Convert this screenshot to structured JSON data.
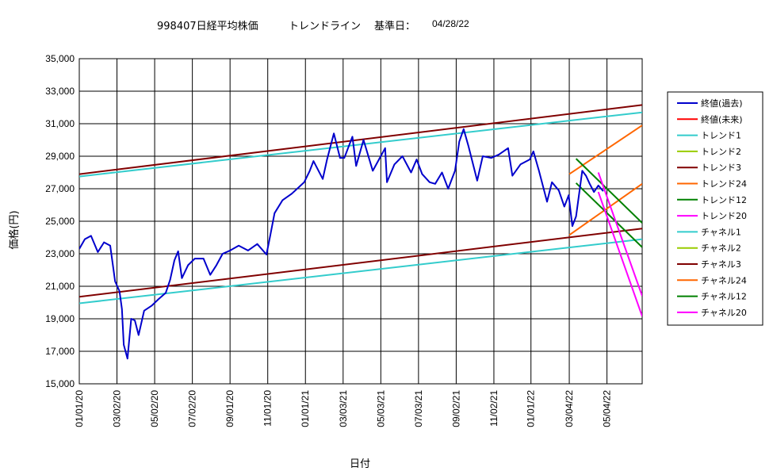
{
  "title": {
    "code_name": "998407日経平均株価",
    "trend_label": "トレンドライン",
    "base_label": "基準日：",
    "base_date": "04/28/22"
  },
  "chart_data": {
    "type": "line",
    "xlabel": "日付",
    "ylabel": "価格(円)",
    "ylim": [
      15000,
      35000
    ],
    "yticks": [
      "15,000",
      "17,000",
      "19,000",
      "21,000",
      "23,000",
      "25,000",
      "27,000",
      "29,000",
      "31,000",
      "33,000",
      "35,000"
    ],
    "xlim": [
      "2020-01-01",
      "2022-06-30"
    ],
    "xticks": [
      "01/01/20",
      "03/02/20",
      "05/02/20",
      "07/02/20",
      "09/01/20",
      "11/01/20",
      "01/01/21",
      "03/03/21",
      "05/03/21",
      "07/03/21",
      "09/02/21",
      "11/02/21",
      "01/01/22",
      "03/04/22",
      "05/04/22"
    ],
    "grid": true,
    "legend_position": "right",
    "series": [
      {
        "name": "終値(過去)",
        "color": "#0000cc",
        "points": [
          [
            "2020-01-01",
            23300
          ],
          [
            "2020-01-10",
            23900
          ],
          [
            "2020-01-20",
            24100
          ],
          [
            "2020-01-31",
            23100
          ],
          [
            "2020-02-10",
            23700
          ],
          [
            "2020-02-20",
            23500
          ],
          [
            "2020-02-28",
            21300
          ],
          [
            "2020-03-06",
            20700
          ],
          [
            "2020-03-10",
            19600
          ],
          [
            "2020-03-13",
            17400
          ],
          [
            "2020-03-19",
            16550
          ],
          [
            "2020-03-25",
            19000
          ],
          [
            "2020-03-31",
            18900
          ],
          [
            "2020-04-06",
            18000
          ],
          [
            "2020-04-15",
            19500
          ],
          [
            "2020-04-27",
            19800
          ],
          [
            "2020-05-08",
            20200
          ],
          [
            "2020-05-20",
            20600
          ],
          [
            "2020-05-27",
            21400
          ],
          [
            "2020-06-03",
            22600
          ],
          [
            "2020-06-09",
            23150
          ],
          [
            "2020-06-15",
            21500
          ],
          [
            "2020-06-25",
            22300
          ],
          [
            "2020-07-06",
            22700
          ],
          [
            "2020-07-20",
            22700
          ],
          [
            "2020-07-31",
            21700
          ],
          [
            "2020-08-10",
            22300
          ],
          [
            "2020-08-20",
            23000
          ],
          [
            "2020-09-01",
            23200
          ],
          [
            "2020-09-15",
            23500
          ],
          [
            "2020-09-30",
            23200
          ],
          [
            "2020-10-15",
            23600
          ],
          [
            "2020-10-30",
            22950
          ],
          [
            "2020-11-05",
            24100
          ],
          [
            "2020-11-12",
            25500
          ],
          [
            "2020-11-25",
            26300
          ],
          [
            "2020-12-10",
            26700
          ],
          [
            "2020-12-30",
            27400
          ],
          [
            "2021-01-08",
            28100
          ],
          [
            "2021-01-14",
            28700
          ],
          [
            "2021-01-29",
            27600
          ],
          [
            "2021-02-05",
            28800
          ],
          [
            "2021-02-16",
            30400
          ],
          [
            "2021-02-26",
            28900
          ],
          [
            "2021-03-05",
            28900
          ],
          [
            "2021-03-18",
            30200
          ],
          [
            "2021-03-24",
            28400
          ],
          [
            "2021-04-05",
            30000
          ],
          [
            "2021-04-20",
            28100
          ],
          [
            "2021-04-30",
            28800
          ],
          [
            "2021-05-10",
            29500
          ],
          [
            "2021-05-13",
            27400
          ],
          [
            "2021-05-25",
            28500
          ],
          [
            "2021-06-07",
            29000
          ],
          [
            "2021-06-21",
            28000
          ],
          [
            "2021-06-30",
            28800
          ],
          [
            "2021-07-09",
            27900
          ],
          [
            "2021-07-21",
            27400
          ],
          [
            "2021-07-30",
            27300
          ],
          [
            "2021-08-10",
            28000
          ],
          [
            "2021-08-20",
            27000
          ],
          [
            "2021-08-31",
            28100
          ],
          [
            "2021-09-07",
            29900
          ],
          [
            "2021-09-14",
            30670
          ],
          [
            "2021-09-22",
            29600
          ],
          [
            "2021-10-06",
            27500
          ],
          [
            "2021-10-15",
            29000
          ],
          [
            "2021-10-29",
            28900
          ],
          [
            "2021-11-10",
            29100
          ],
          [
            "2021-11-25",
            29500
          ],
          [
            "2021-12-02",
            27800
          ],
          [
            "2021-12-15",
            28500
          ],
          [
            "2021-12-30",
            28800
          ],
          [
            "2022-01-05",
            29300
          ],
          [
            "2022-01-14",
            28100
          ],
          [
            "2022-01-27",
            26200
          ],
          [
            "2022-02-04",
            27400
          ],
          [
            "2022-02-15",
            26900
          ],
          [
            "2022-02-24",
            25900
          ],
          [
            "2022-03-03",
            26600
          ],
          [
            "2022-03-09",
            24700
          ],
          [
            "2022-03-15",
            25300
          ],
          [
            "2022-03-25",
            28100
          ],
          [
            "2022-03-31",
            27800
          ],
          [
            "2022-04-06",
            27300
          ],
          [
            "2022-04-13",
            26800
          ],
          [
            "2022-04-20",
            27200
          ],
          [
            "2022-04-28",
            26850
          ]
        ]
      },
      {
        "name": "終値(未来)",
        "color": "#ff0000",
        "points": []
      },
      {
        "name": "トレンド1",
        "color": "#33cccc",
        "points": [
          [
            "2020-01-01",
            27750
          ],
          [
            "2022-06-30",
            31700
          ]
        ]
      },
      {
        "name": "トレンド2",
        "color": "#99cc00",
        "points": []
      },
      {
        "name": "トレンド3",
        "color": "#800000",
        "points": [
          [
            "2020-01-01",
            27900
          ],
          [
            "2022-06-30",
            32150
          ]
        ]
      },
      {
        "name": "トレンド24",
        "color": "#ff6600",
        "points": [
          [
            "2022-03-04",
            27900
          ],
          [
            "2022-06-30",
            30900
          ]
        ]
      },
      {
        "name": "トレンド12",
        "color": "#008000",
        "points": [
          [
            "2022-03-15",
            28850
          ],
          [
            "2022-06-30",
            24900
          ]
        ]
      },
      {
        "name": "トレンド20",
        "color": "#ff00ff",
        "points": [
          [
            "2022-04-20",
            28000
          ],
          [
            "2022-06-30",
            20400
          ]
        ]
      },
      {
        "name": "チャネル1",
        "color": "#33cccc",
        "points": [
          [
            "2020-01-01",
            19950
          ],
          [
            "2022-06-30",
            23900
          ]
        ]
      },
      {
        "name": "チャネル2",
        "color": "#99cc00",
        "points": []
      },
      {
        "name": "チャネル3",
        "color": "#800000",
        "points": [
          [
            "2020-01-01",
            20350
          ],
          [
            "2022-06-30",
            24550
          ]
        ]
      },
      {
        "name": "チャネル24",
        "color": "#ff6600",
        "points": [
          [
            "2022-03-04",
            24150
          ],
          [
            "2022-06-30",
            27300
          ]
        ]
      },
      {
        "name": "チャネル12",
        "color": "#008000",
        "points": [
          [
            "2022-03-15",
            27350
          ],
          [
            "2022-06-30",
            23400
          ]
        ]
      },
      {
        "name": "チャネル20",
        "color": "#ff00ff",
        "points": [
          [
            "2022-04-20",
            26800
          ],
          [
            "2022-06-30",
            19150
          ]
        ]
      }
    ]
  }
}
